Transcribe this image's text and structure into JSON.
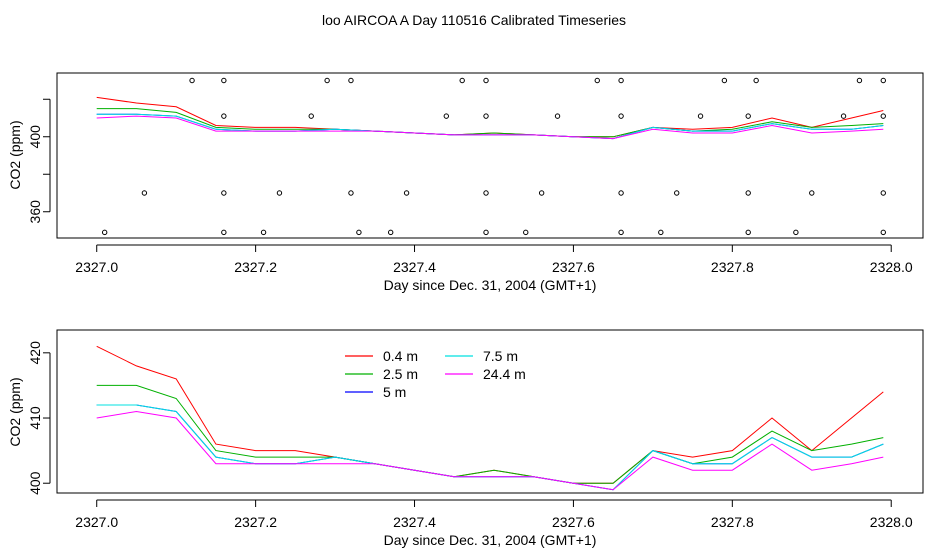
{
  "title": "loo AIRCOA A  Day 110516  Calibrated Timeseries",
  "colors": {
    "0.4 m": "#ff0000",
    "2.5 m": "#00b000",
    "5 m": "#0000ff",
    "7.5 m": "#00e0e0",
    "24.4 m": "#ff00ff",
    "markers": "#000000"
  },
  "chart_data": [
    {
      "type": "line",
      "ylabel": "CO2 (ppm)",
      "xlabel": "Day since Dec. 31, 2004 (GMT+1)",
      "xlim": [
        2326.95,
        2328.04
      ],
      "ylim": [
        346,
        434
      ],
      "xticks": [
        2327.0,
        2327.2,
        2327.4,
        2327.6,
        2327.8,
        2328.0
      ],
      "xtick_labels": [
        "2327.0",
        "2327.2",
        "2327.4",
        "2327.6",
        "2327.8",
        "2328.0"
      ],
      "yticks": [
        360,
        380,
        400,
        420
      ],
      "ytick_labels": [
        "360",
        "",
        "400",
        ""
      ],
      "grid": false,
      "x": [
        2327.0,
        2327.05,
        2327.1,
        2327.15,
        2327.2,
        2327.25,
        2327.3,
        2327.35,
        2327.4,
        2327.45,
        2327.5,
        2327.55,
        2327.6,
        2327.65,
        2327.7,
        2327.75,
        2327.8,
        2327.85,
        2327.9,
        2327.95,
        2327.99
      ],
      "series": [
        {
          "name": "0.4 m",
          "values": [
            421,
            418,
            416,
            406,
            405,
            405,
            404,
            403,
            402,
            401,
            402,
            401,
            400,
            400,
            405,
            404,
            405,
            410,
            405,
            410,
            414
          ]
        },
        {
          "name": "2.5 m",
          "values": [
            415,
            415,
            413,
            405,
            404,
            404,
            404,
            403,
            402,
            401,
            402,
            401,
            400,
            400,
            405,
            403,
            404,
            408,
            405,
            406,
            407
          ]
        },
        {
          "name": "5 m",
          "values": [
            412,
            412,
            411,
            404,
            403,
            403,
            404,
            403,
            402,
            401,
            401,
            401,
            400,
            399,
            405,
            403,
            403,
            407,
            404,
            404,
            406
          ]
        },
        {
          "name": "7.5 m",
          "values": [
            412,
            412,
            411,
            404,
            403,
            403,
            404,
            403,
            402,
            401,
            401,
            401,
            400,
            399,
            405,
            403,
            403,
            407,
            404,
            404,
            406
          ]
        },
        {
          "name": "24.4 m",
          "values": [
            410,
            411,
            410,
            403,
            403,
            403,
            403,
            403,
            402,
            401,
            401,
            401,
            400,
            399,
            404,
            402,
            402,
            406,
            402,
            403,
            404
          ]
        }
      ],
      "markers": {
        "x": [
          2327.12,
          2327.16,
          2327.29,
          2327.32,
          2327.46,
          2327.49,
          2327.63,
          2327.66,
          2327.79,
          2327.83,
          2327.96,
          2327.99,
          2327.16,
          2327.27,
          2327.44,
          2327.49,
          2327.58,
          2327.66,
          2327.76,
          2327.82,
          2327.94,
          2327.99,
          2327.06,
          2327.16,
          2327.23,
          2327.32,
          2327.39,
          2327.49,
          2327.56,
          2327.66,
          2327.73,
          2327.82,
          2327.9,
          2327.99,
          2327.01,
          2327.16,
          2327.21,
          2327.33,
          2327.37,
          2327.49,
          2327.54,
          2327.66,
          2327.71,
          2327.82,
          2327.88,
          2327.99
        ],
        "y": [
          430,
          430,
          430,
          430,
          430,
          430,
          430,
          430,
          430,
          430,
          430,
          430,
          411,
          411,
          411,
          411,
          411,
          411,
          411,
          411,
          411,
          411,
          370,
          370,
          370,
          370,
          370,
          370,
          370,
          370,
          370,
          370,
          370,
          370,
          349,
          349,
          349,
          349,
          349,
          349,
          349,
          349,
          349,
          349,
          349,
          349
        ]
      }
    },
    {
      "type": "line",
      "ylabel": "CO2 (ppm)",
      "xlabel": "Day since Dec. 31, 2004 (GMT+1)",
      "xlim": [
        2326.95,
        2328.04
      ],
      "ylim": [
        398.5,
        423.5
      ],
      "xticks": [
        2327.0,
        2327.2,
        2327.4,
        2327.6,
        2327.8,
        2328.0
      ],
      "xtick_labels": [
        "2327.0",
        "2327.2",
        "2327.4",
        "2327.6",
        "2327.8",
        "2328.0"
      ],
      "yticks": [
        400,
        410,
        420
      ],
      "ytick_labels": [
        "400",
        "410",
        "420"
      ],
      "grid": false,
      "legend": "top-center",
      "x": [
        2327.0,
        2327.05,
        2327.1,
        2327.15,
        2327.2,
        2327.25,
        2327.3,
        2327.35,
        2327.4,
        2327.45,
        2327.5,
        2327.55,
        2327.6,
        2327.65,
        2327.7,
        2327.75,
        2327.8,
        2327.85,
        2327.9,
        2327.95,
        2327.99
      ],
      "series": [
        {
          "name": "0.4 m",
          "values": [
            421,
            418,
            416,
            406,
            405,
            405,
            404,
            403,
            402,
            401,
            402,
            401,
            400,
            400,
            405,
            404,
            405,
            410,
            405,
            410,
            414
          ]
        },
        {
          "name": "2.5 m",
          "values": [
            415,
            415,
            413,
            405,
            404,
            404,
            404,
            403,
            402,
            401,
            402,
            401,
            400,
            400,
            405,
            403,
            404,
            408,
            405,
            406,
            407
          ]
        },
        {
          "name": "5 m",
          "values": [
            412,
            412,
            411,
            404,
            403,
            403,
            404,
            403,
            402,
            401,
            401,
            401,
            400,
            399,
            405,
            403,
            403,
            407,
            404,
            404,
            406
          ]
        },
        {
          "name": "7.5 m",
          "values": [
            412,
            412,
            411,
            404,
            403,
            403,
            404,
            403,
            402,
            401,
            401,
            401,
            400,
            399,
            405,
            403,
            403,
            407,
            404,
            404,
            406
          ]
        },
        {
          "name": "24.4 m",
          "values": [
            410,
            411,
            410,
            403,
            403,
            403,
            403,
            403,
            402,
            401,
            401,
            401,
            400,
            399,
            404,
            402,
            402,
            406,
            402,
            403,
            404
          ]
        }
      ]
    }
  ]
}
